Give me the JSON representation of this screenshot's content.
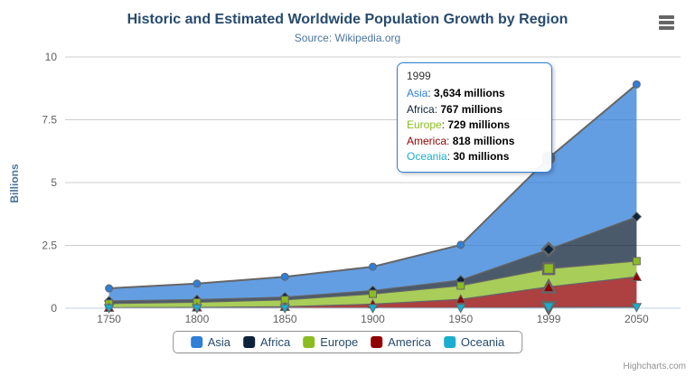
{
  "title": "Historic and Estimated Worldwide Population Growth by Region",
  "subtitle": "Source: Wikipedia.org",
  "credits": "Highcharts.com",
  "chart_data": {
    "type": "area",
    "stacking": "normal",
    "title": "Historic and Estimated Worldwide Population Growth by Region",
    "subtitle": "Source: Wikipedia.org",
    "categories": [
      "1750",
      "1800",
      "1850",
      "1900",
      "1950",
      "1999",
      "2050"
    ],
    "xlabel": "",
    "ylabel": "Billions",
    "unit": "millions",
    "ylim": [
      0,
      10
    ],
    "yticks": [
      "0",
      "2.5",
      "5",
      "7.5",
      "10"
    ],
    "grid": "horizontal",
    "legend_position": "bottom",
    "stack_order_bottom_to_top": [
      "Oceania",
      "America",
      "Europe",
      "Africa",
      "Asia"
    ],
    "hover_category_index": 5,
    "series": [
      {
        "name": "Asia",
        "color": "#2f7ed8",
        "marker": "circle",
        "values": [
          502,
          635,
          809,
          947,
          1402,
          3634,
          5268
        ]
      },
      {
        "name": "Africa",
        "color": "#0d233a",
        "marker": "diamond",
        "values": [
          106,
          107,
          111,
          133,
          221,
          767,
          1766
        ]
      },
      {
        "name": "Europe",
        "color": "#8bbc21",
        "marker": "square",
        "values": [
          163,
          203,
          276,
          408,
          547,
          729,
          628
        ]
      },
      {
        "name": "America",
        "color": "#910000",
        "marker": "triangle",
        "values": [
          18,
          31,
          54,
          156,
          339,
          818,
          1201
        ]
      },
      {
        "name": "Oceania",
        "color": "#1aadce",
        "marker": "triangle-down",
        "values": [
          2,
          2,
          2,
          6,
          13,
          30,
          46
        ]
      }
    ]
  },
  "tooltip": {
    "header": "1999",
    "rows": [
      {
        "name": "Asia",
        "color": "#2f7ed8",
        "value": "3,634",
        "suffix": " millions"
      },
      {
        "name": "Africa",
        "color": "#0d233a",
        "value": "767",
        "suffix": " millions"
      },
      {
        "name": "Europe",
        "color": "#8bbc21",
        "value": "729",
        "suffix": " millions"
      },
      {
        "name": "America",
        "color": "#910000",
        "value": "818",
        "suffix": " millions"
      },
      {
        "name": "Oceania",
        "color": "#1aadce",
        "value": "30",
        "suffix": " millions"
      }
    ]
  },
  "style": {
    "grid_color": "#cccccc",
    "axis_line_color": "#c0d0e0",
    "tick_color": "#999999",
    "series_line_color": "#666666",
    "axis_label_color": "#606060",
    "tooltip_border_color": "#2f7ed8"
  }
}
